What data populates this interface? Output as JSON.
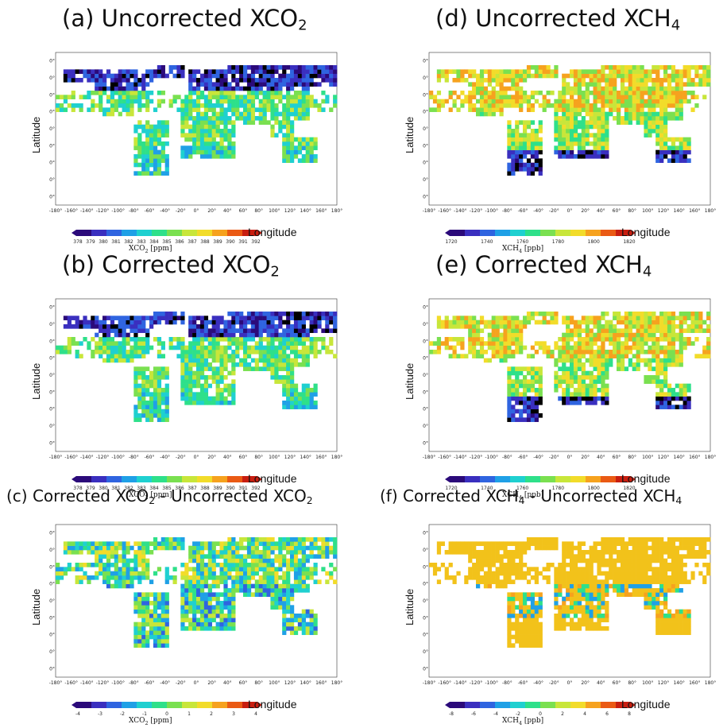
{
  "panels": [
    {
      "id": "a",
      "title_pre": "(a) Uncorrected XCO",
      "title_sub": "2",
      "title_post": "",
      "size": "big",
      "variable": "XCO2",
      "kind": "abs_co2",
      "colorbar": {
        "ticks": [
          "378",
          "379",
          "380",
          "381",
          "382",
          "383",
          "384",
          "385",
          "386",
          "387",
          "388",
          "389",
          "390",
          "391",
          "392"
        ],
        "label_pre": "XCO",
        "label_sub": "2",
        "label_post": " [ppm]"
      }
    },
    {
      "id": "d",
      "title_pre": "(d) Uncorrected XCH",
      "title_sub": "4",
      "title_post": "",
      "size": "big",
      "variable": "XCH4",
      "kind": "abs_ch4",
      "colorbar": {
        "ticks": [
          "1720",
          "1740",
          "1760",
          "1780",
          "1800",
          "1820"
        ],
        "label_pre": "XCH",
        "label_sub": "4",
        "label_post": " [ppb]"
      }
    },
    {
      "id": "b",
      "title_pre": "(b) Corrected XCO",
      "title_sub": "2",
      "title_post": "",
      "size": "big",
      "variable": "XCO2",
      "kind": "abs_co2",
      "colorbar": {
        "ticks": [
          "378",
          "379",
          "380",
          "381",
          "382",
          "383",
          "384",
          "385",
          "386",
          "387",
          "388",
          "389",
          "390",
          "391",
          "392"
        ],
        "label_pre": "XCO",
        "label_sub": "2",
        "label_post": " [ppm]"
      }
    },
    {
      "id": "e",
      "title_pre": "(e) Corrected XCH",
      "title_sub": "4",
      "title_post": "",
      "size": "big",
      "variable": "XCH4",
      "kind": "abs_ch4",
      "colorbar": {
        "ticks": [
          "1720",
          "1740",
          "1760",
          "1780",
          "1800",
          "1820"
        ],
        "label_pre": "XCH",
        "label_sub": "4",
        "label_post": " [ppb]"
      }
    },
    {
      "id": "c",
      "title_pre": "(c) Corrected XCO",
      "title_sub": "2",
      "title_mid": " - Uncorrected XCO",
      "title_sub2": "2",
      "size": "small",
      "variable": "XCO2",
      "kind": "diff_co2",
      "colorbar": {
        "ticks": [
          "-4",
          "-3",
          "-2",
          "-1",
          "0",
          "1",
          "2",
          "3",
          "4"
        ],
        "label_pre": "XCO",
        "label_sub": "2",
        "label_post": " [ppm]"
      }
    },
    {
      "id": "f",
      "title_pre": "(f) Corrected XCH",
      "title_sub": "4",
      "title_mid": " - Uncorrected XCH",
      "title_sub2": "4",
      "size": "small",
      "variable": "XCH4",
      "kind": "diff_ch4",
      "colorbar": {
        "ticks": [
          "-8",
          "-6",
          "-4",
          "-2",
          "0",
          "2",
          "4",
          "6",
          "8"
        ],
        "label_pre": "XCH",
        "label_sub": "4",
        "label_post": " [ppb]"
      }
    }
  ],
  "axes": {
    "ylabel": "Latitude",
    "xlabel": "Longitude",
    "lon_ticks": [
      "-180°",
      "-160°",
      "-140°",
      "-120°",
      "-100°",
      "-80°",
      "-60°",
      "-40°",
      "-20°",
      "0°",
      "20°",
      "40°",
      "60°",
      "80°",
      "100°",
      "120°",
      "140°",
      "160°",
      "180°"
    ],
    "lat_ticks": [
      "80°",
      "60°",
      "40°",
      "20°",
      "0°",
      "-20°",
      "-40°",
      "-60°",
      "-80°"
    ]
  },
  "colors": {
    "rainbow": [
      "#2b0a7a",
      "#3a2fbf",
      "#2f64e0",
      "#1fa0e6",
      "#1fd0d0",
      "#2ee08a",
      "#7ae050",
      "#c8e63a",
      "#f2dc2a",
      "#f6a21e",
      "#ea5a14",
      "#c81e10"
    ],
    "missing": "#000000"
  }
}
